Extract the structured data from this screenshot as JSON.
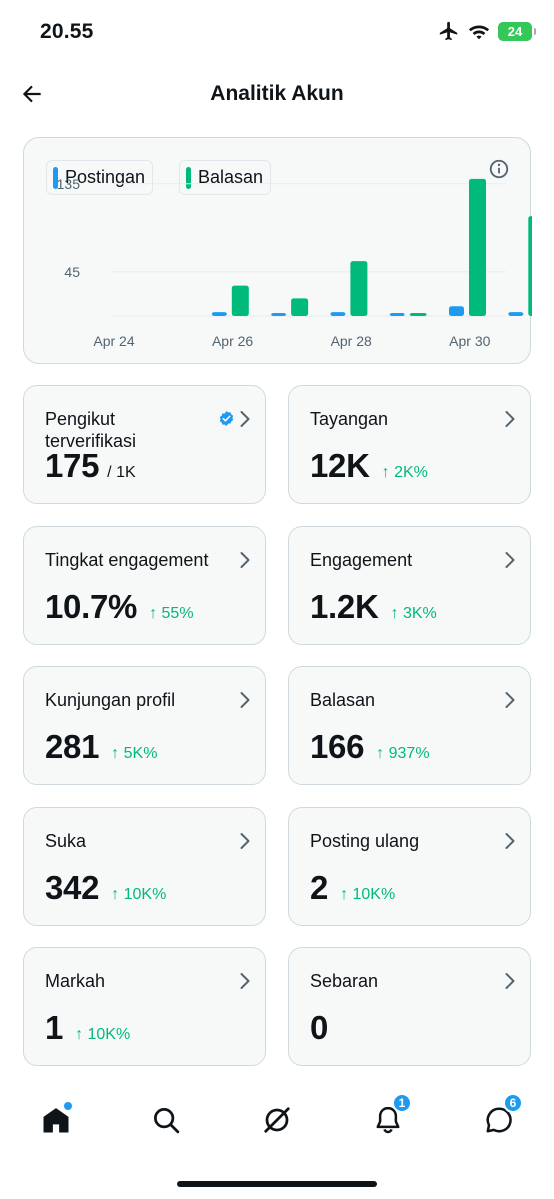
{
  "status_bar": {
    "time": "20.55",
    "battery": "24"
  },
  "header": {
    "title": "Analitik Akun"
  },
  "chart": {
    "legend": [
      {
        "label": "Postingan",
        "color": "#1d9bf0"
      },
      {
        "label": "Balasan",
        "color": "#00ba7c"
      }
    ],
    "y_ticks": [
      "135",
      "45"
    ],
    "x_ticks": [
      "Apr 24",
      "Apr 26",
      "Apr 28",
      "Apr 30"
    ]
  },
  "chart_data": {
    "type": "bar",
    "categories": [
      "Apr 24",
      "Apr 25",
      "Apr 26",
      "Apr 27",
      "Apr 28",
      "Apr 29",
      "Apr 30"
    ],
    "series": [
      {
        "name": "Postingan",
        "color": "#1d9bf0",
        "values": [
          0,
          4,
          2,
          4,
          2,
          10,
          4
        ]
      },
      {
        "name": "Balasan",
        "color": "#00ba7c",
        "values": [
          0,
          31,
          18,
          56,
          2,
          140,
          102
        ]
      }
    ],
    "yticks": [
      45,
      135
    ],
    "ylim": [
      0,
      145
    ],
    "grid": true
  },
  "stats": [
    {
      "label": "Pengikut terverifikasi",
      "value": "175",
      "suffix": "/ 1K",
      "delta": "",
      "verified": true
    },
    {
      "label": "Tayangan",
      "value": "12K",
      "suffix": "",
      "delta": "↑ 2K%"
    },
    {
      "label": "Tingkat engagement",
      "value": "10.7%",
      "suffix": "",
      "delta": "↑ 55%"
    },
    {
      "label": "Engagement",
      "value": "1.2K",
      "suffix": "",
      "delta": "↑ 3K%"
    },
    {
      "label": "Kunjungan profil",
      "value": "281",
      "suffix": "",
      "delta": "↑ 5K%"
    },
    {
      "label": "Balasan",
      "value": "166",
      "suffix": "",
      "delta": "↑ 937%"
    },
    {
      "label": "Suka",
      "value": "342",
      "suffix": "",
      "delta": "↑ 10K%"
    },
    {
      "label": "Posting ulang",
      "value": "2",
      "suffix": "",
      "delta": "↑ 10K%"
    },
    {
      "label": "Markah",
      "value": "1",
      "suffix": "",
      "delta": "↑ 10K%"
    },
    {
      "label": "Sebaran",
      "value": "0",
      "suffix": "",
      "delta": ""
    }
  ],
  "nav": {
    "items": [
      "home-icon",
      "search-icon",
      "grok-icon",
      "notifications-icon",
      "messages-icon"
    ],
    "notifications_badge": "1",
    "messages_badge": "6"
  }
}
